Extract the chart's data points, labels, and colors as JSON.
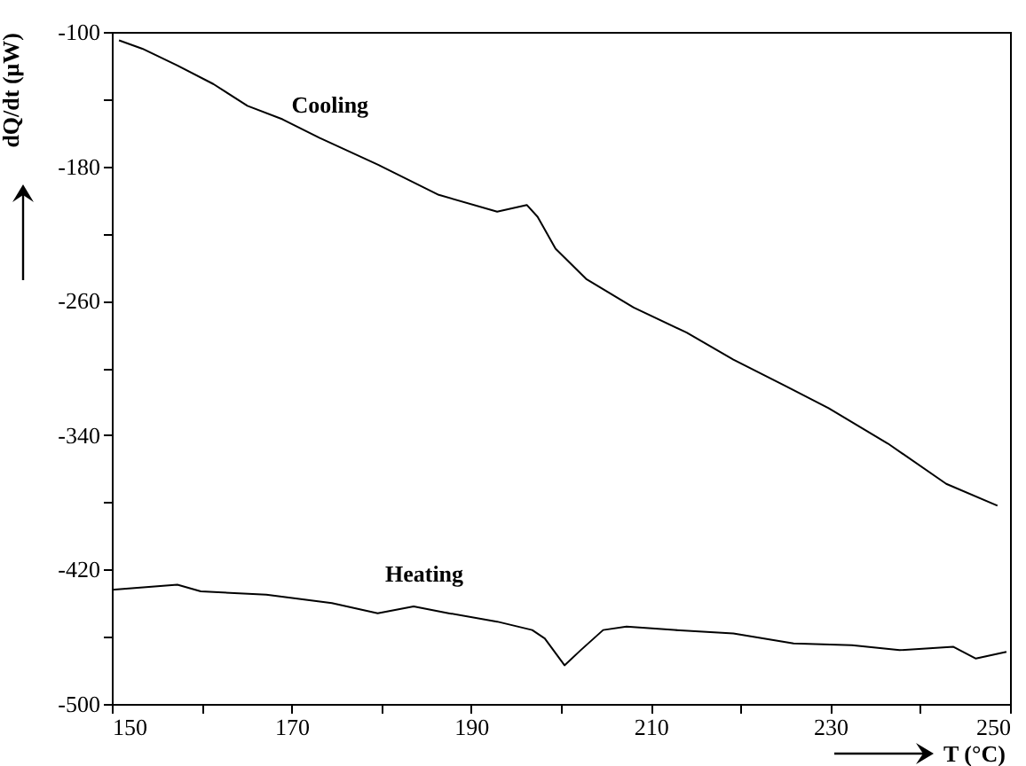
{
  "chart_data": {
    "type": "line",
    "xlabel": "T (°C)",
    "ylabel": "dQ/dt (μW)",
    "xlim": [
      150,
      250
    ],
    "xticks": [
      150,
      {
        "value": 160,
        "label": null
      },
      170,
      {
        "value": 180,
        "label": null
      },
      190,
      {
        "value": 200,
        "label": null
      },
      210,
      {
        "value": 220,
        "label": null
      },
      230,
      {
        "value": 240,
        "label": null
      },
      250
    ],
    "ylim": [
      -500,
      -100
    ],
    "yticks": [
      -500,
      {
        "value": -460,
        "label": null
      },
      -420,
      {
        "value": -380,
        "label": null
      },
      -340,
      {
        "value": -300,
        "label": null
      },
      -260,
      {
        "value": -220,
        "label": null
      },
      -180,
      {
        "value": -140,
        "label": null
      },
      -100
    ],
    "grid": false,
    "line_style": "solid",
    "marker": "none",
    "series": [
      {
        "name": "Cooling",
        "color": "#000000",
        "x": [
          150.8,
          153.4,
          157.3,
          161.3,
          165.1,
          169,
          173.1,
          179.6,
          186.4,
          192.9,
          196.2,
          197.4,
          199.4,
          202.8,
          208.1,
          214,
          219.2,
          225.1,
          229.8,
          236.4,
          242.9,
          248.6
        ],
        "values": [
          -105,
          -110,
          -120,
          -131,
          -144,
          -152,
          -163,
          -179,
          -197,
          -207,
          -203,
          -210,
          -229,
          -247,
          -264,
          -279,
          -295,
          -311,
          -324,
          -345,
          -369,
          -382
        ]
      },
      {
        "name": "Heating",
        "color": "#000000",
        "x": [
          150,
          157.3,
          159.9,
          167.2,
          174.5,
          179.6,
          183.6,
          187.5,
          192.9,
          196.8,
          198.2,
          200.4,
          202.2,
          204.7,
          207.3,
          212.6,
          219.2,
          225.9,
          232.4,
          237.7,
          243.7,
          246.2,
          249.6
        ],
        "values": [
          -432,
          -429,
          -433,
          -435,
          -440,
          -446,
          -442,
          -446,
          -451,
          -456,
          -461,
          -477,
          -468,
          -456,
          -454,
          -456,
          -458,
          -464,
          -465,
          -468,
          -466,
          -473,
          -469
        ]
      }
    ]
  }
}
